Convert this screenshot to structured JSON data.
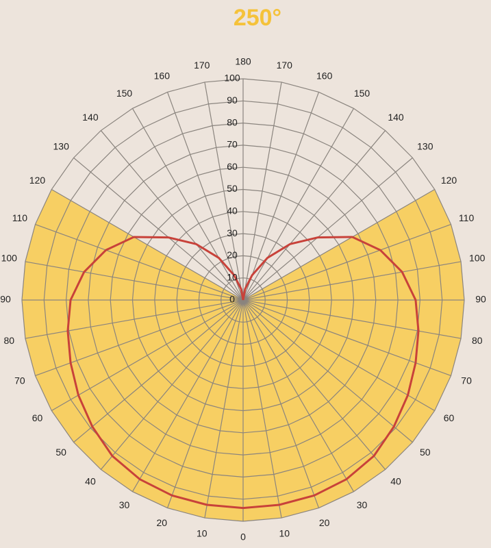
{
  "chart_data": {
    "type": "polar",
    "title": "250°",
    "title_color": "#f5c23a",
    "background": "#ede4dc",
    "grid": true,
    "grid_color": "#8a847e",
    "rlim": [
      0,
      100
    ],
    "rticks": [
      0,
      10,
      20,
      30,
      40,
      50,
      60,
      70,
      80,
      90,
      100
    ],
    "angle_ticks": [
      0,
      10,
      20,
      30,
      40,
      50,
      60,
      70,
      80,
      90,
      100,
      110,
      120,
      130,
      140,
      150,
      160,
      170,
      180
    ],
    "coverage_angle": 120,
    "coverage_color": "#f7cf63",
    "symmetric": true,
    "series": [
      {
        "color": "#c8423a",
        "angles": [
          0,
          10,
          20,
          30,
          40,
          50,
          60,
          70,
          80,
          90,
          100,
          110,
          120,
          130,
          140,
          150,
          160,
          170,
          180
        ],
        "values": [
          94,
          94,
          94,
          93.5,
          92,
          89,
          86,
          83,
          80.5,
          78,
          73,
          66,
          57,
          44,
          33,
          22,
          12,
          5,
          0
        ]
      }
    ]
  }
}
